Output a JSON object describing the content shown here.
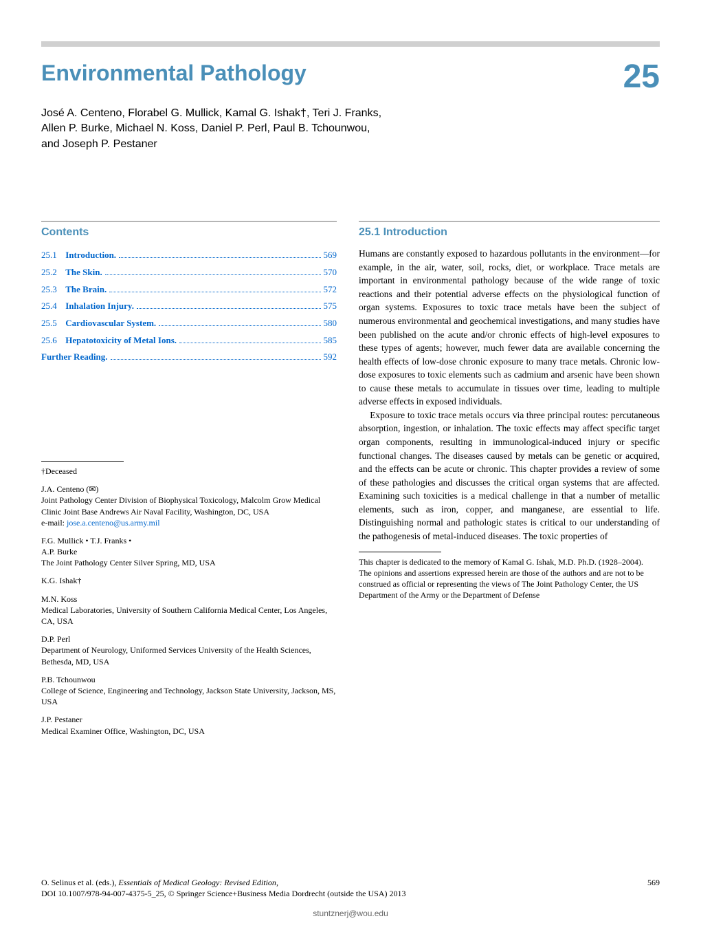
{
  "chapter": {
    "title": "Environmental Pathology",
    "number": "25"
  },
  "authors_line1": "José A. Centeno, Florabel G. Mullick, Kamal G. Ishak†, Teri J. Franks,",
  "authors_line2": "Allen P. Burke, Michael N. Koss, Daniel P. Perl, Paul B. Tchounwou,",
  "authors_line3": "and Joseph P. Pestaner",
  "contents_heading": "Contents",
  "toc": [
    {
      "num": "25.1",
      "title": "Introduction.",
      "page": "569"
    },
    {
      "num": "25.2",
      "title": "The Skin.",
      "page": "570"
    },
    {
      "num": "25.3",
      "title": "The Brain.",
      "page": "572"
    },
    {
      "num": "25.4",
      "title": "Inhalation Injury.",
      "page": "575"
    },
    {
      "num": "25.5",
      "title": "Cardiovascular System.",
      "page": "580"
    },
    {
      "num": "25.6",
      "title": "Hepatotoxicity of Metal Ions.",
      "page": "585"
    },
    {
      "num": "",
      "title": "Further Reading.",
      "page": "592"
    }
  ],
  "section_heading": "25.1    Introduction",
  "body_p1": "Humans are constantly exposed to hazardous pollutants in the environment—for example, in the air, water, soil, rocks, diet, or workplace. Trace metals are important in environmental pathology because of the wide range of toxic reactions and their potential adverse effects on the physiological function of organ systems. Exposures to toxic trace metals have been the subject of numerous environmental and geochemical investigations, and many studies have been published on the acute and/or chronic effects of high-level exposures to these types of agents; however, much fewer data are available concerning the health effects of low-dose chronic exposure to many trace metals. Chronic low-dose exposures to toxic elements such as cadmium and arsenic have been shown to cause these metals to accumulate in tissues over time, leading to multiple adverse effects in exposed individuals.",
  "body_p2": "Exposure to toxic trace metals occurs via three principal routes: percutaneous absorption, ingestion, or inhalation. The toxic effects may affect specific target organ components, resulting in immunological-induced injury or specific functional changes. The diseases caused by metals can be genetic or acquired, and the effects can be acute or chronic. This chapter provides a review of some of these pathologies and discusses the critical organ systems that are affected. Examining such toxicities is a medical challenge in that a number of metallic elements, such as iron, copper, and manganese, are essential to life. Distinguishing normal and pathologic states is critical to our understanding of the pathogenesis of metal-induced diseases. The toxic properties of",
  "left_footnotes": {
    "deceased": "†Deceased",
    "centeno_name": "J.A. Centeno (✉)",
    "centeno_aff": "Joint Pathology Center Division of Biophysical Toxicology, Malcolm Grow Medical Clinic Joint Base Andrews Air Naval Facility, Washington, DC, USA",
    "centeno_email_label": "e-mail: ",
    "centeno_email": "jose.a.centeno@us.army.mil",
    "mullick_name": "F.G. Mullick • T.J. Franks •",
    "burke_name": "A.P. Burke",
    "burke_aff": "The Joint Pathology Center Silver Spring, MD, USA",
    "ishak_name": "K.G. Ishak†",
    "koss_name": "M.N. Koss",
    "koss_aff": "Medical Laboratories, University of Southern California Medical Center, Los Angeles, CA, USA",
    "perl_name": "D.P. Perl",
    "perl_aff": "Department of Neurology, Uniformed Services University of the Health Sciences, Bethesda, MD, USA",
    "tchounwou_name": "P.B. Tchounwou",
    "tchounwou_aff": "College of Science, Engineering and Technology, Jackson State University, Jackson, MS, USA",
    "pestaner_name": "J.P. Pestaner",
    "pestaner_aff": "Medical Examiner Office, Washington, DC, USA"
  },
  "right_footnote": {
    "dedication": "This chapter is dedicated to the memory of Kamal G. Ishak, M.D. Ph.D. (1928–2004).",
    "disclaimer": "The opinions and assertions expressed herein are those of the authors and are not to be construed as official or representing the views of The Joint Pathology Center, the US Department of the Army or the Department of Defense"
  },
  "citation_line1": "O. Selinus et al. (eds.), Essentials of Medical Geology: Revised Edition,",
  "citation_line2": "DOI 10.1007/978-94-007-4375-5_25, © Springer Science+Business Media Dordrecht (outside the USA) 2013",
  "page_number": "569",
  "footer_email": "stuntznerj@wou.edu",
  "colors": {
    "accent": "#4a8fb8",
    "link": "#0066cc",
    "topbar": "#d0d0d0",
    "rule": "#b5b5b5"
  }
}
